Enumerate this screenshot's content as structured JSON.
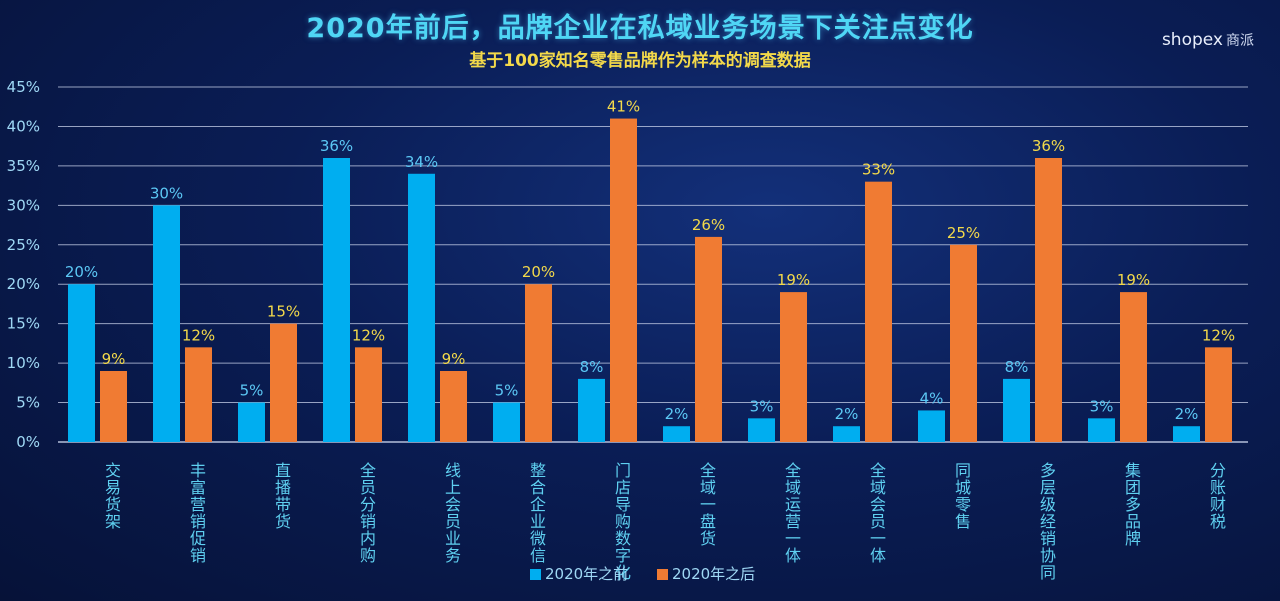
{
  "header": {
    "title": "2020年前后，品牌企业在私域业务场景下关注点变化",
    "subtitle": "基于100家知名零售品牌作为样本的调查数据",
    "brand": "shopex",
    "brand_sub": "商派"
  },
  "colors": {
    "before": "#00aef0",
    "after": "#f07b33",
    "before_label": "#5cc8f5",
    "after_label": "#f3d94a",
    "grid": "#c8d2ea",
    "axis_text": "#9fd8f5",
    "category_text": "#5fd0f0"
  },
  "chart_data": {
    "type": "bar",
    "title": "2020年前后，品牌企业在私域业务场景下关注点变化",
    "subtitle": "基于100家知名零售品牌作为样本的调查数据",
    "categories": [
      "交易货架",
      "丰富营销促销",
      "直播带货",
      "全员分销内购",
      "线上会员业务",
      "整合企业微信",
      "门店导购数字化",
      "全域一盘货",
      "全域运营一体",
      "全域会员一体",
      "同城零售",
      "多层级经销协同",
      "集团多品牌",
      "分账财税"
    ],
    "series": [
      {
        "name": "2020年之前",
        "values": [
          20,
          30,
          5,
          36,
          34,
          5,
          8,
          2,
          3,
          2,
          4,
          8,
          3,
          2
        ],
        "labels": [
          "20%",
          "30%",
          "5%",
          "36%",
          "34%",
          "5%",
          "8%",
          "2%",
          "3%",
          "2%",
          "4%",
          "8%",
          "3%",
          "2%"
        ]
      },
      {
        "name": "2020年之后",
        "values": [
          9,
          12,
          15,
          12,
          9,
          20,
          41,
          26,
          19,
          33,
          25,
          36,
          19,
          12
        ],
        "labels": [
          "9%",
          "12%",
          "15%",
          "12%",
          "9%",
          "20%",
          "41%",
          "26%",
          "19%",
          "33%",
          "25%",
          "36%",
          "19%",
          "12%"
        ]
      }
    ],
    "yticks": [
      "0%",
      "5%",
      "10%",
      "15%",
      "20%",
      "25%",
      "30%",
      "35%",
      "40%",
      "45%"
    ],
    "ylim": [
      0,
      45
    ],
    "xlabel": "",
    "ylabel": "",
    "grid": true,
    "legend": "bottom-center"
  }
}
